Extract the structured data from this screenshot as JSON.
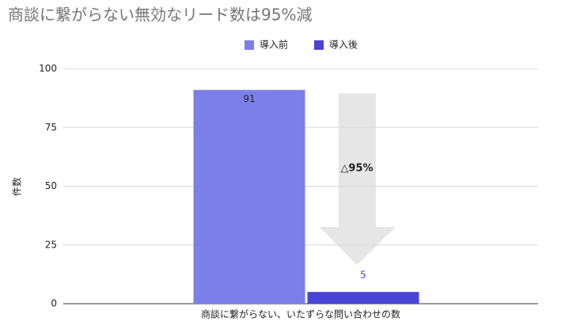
{
  "chart_data": {
    "type": "bar",
    "title": "商談に繋がらない無効なリード数は95%減",
    "y_label": "件数",
    "categories": [
      "商談に繋がらない、いたずらな問い合わせの数"
    ],
    "series": [
      {
        "name": "導入前",
        "color": "#7b7fe9",
        "values": [
          91
        ]
      },
      {
        "name": "導入後",
        "color": "#4a44d6",
        "values": [
          5
        ]
      }
    ],
    "annotation": "△95%",
    "ylim": [
      0,
      100
    ],
    "yticks": [
      0,
      25,
      50,
      75,
      100
    ],
    "grid": true,
    "legend": "top"
  }
}
